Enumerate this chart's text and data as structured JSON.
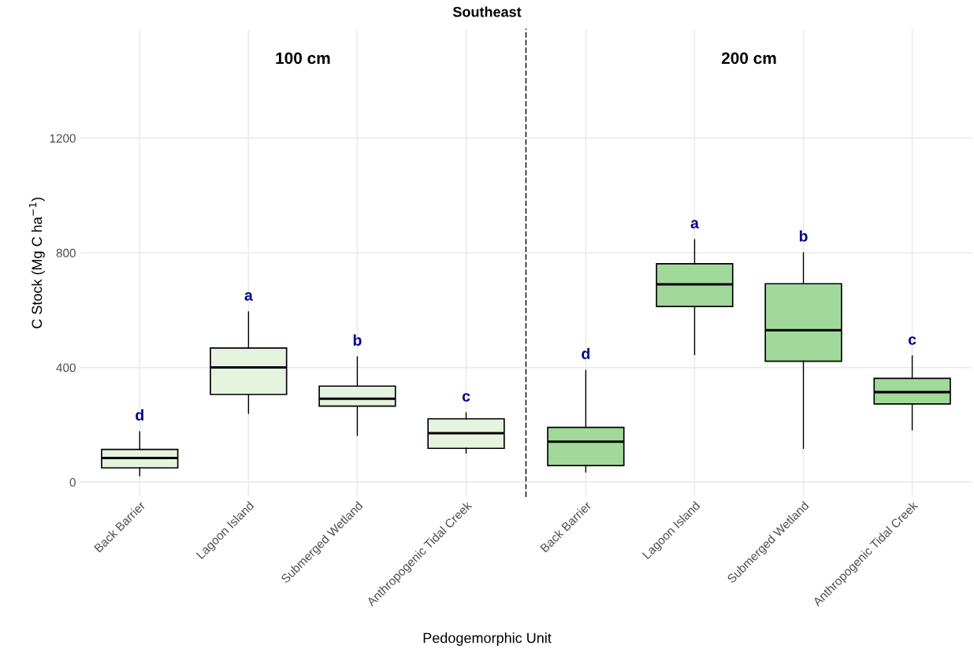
{
  "chart_data": [
    {
      "type": "box",
      "title": "Southeast",
      "subtitle": "100 cm",
      "xlabel": "Pedogemorphic Unit",
      "ylabel": "C Stock (Mg C ha$^{−1}$)",
      "categories": [
        "Back Barrier",
        "Lagoon Island",
        "Submerged Wetland",
        "Anthropogenic Tidal Creek"
      ],
      "color": "#e5f3df",
      "boxes": [
        {
          "low": 22,
          "q1": 50,
          "median": 84,
          "q3": 114,
          "high": 176
        },
        {
          "low": 240,
          "q1": 306,
          "median": 400,
          "q3": 468,
          "high": 594
        },
        {
          "low": 163,
          "q1": 265,
          "median": 291,
          "q3": 335,
          "high": 437
        },
        {
          "low": 101,
          "q1": 118,
          "median": 171,
          "q3": 221,
          "high": 242
        }
      ],
      "annotations": [
        "d",
        "a",
        "b",
        "c"
      ],
      "ylim": [
        -50,
        1580
      ],
      "yticks": [
        0,
        400,
        800,
        1200
      ],
      "grid": true
    },
    {
      "type": "box",
      "subtitle": "200 cm",
      "categories": [
        "Back Barrier",
        "Lagoon Island",
        "Submerged Wetland",
        "Anthropogenic Tidal Creek"
      ],
      "color": "#a1d99b",
      "boxes": [
        {
          "low": 35,
          "q1": 58,
          "median": 141,
          "q3": 191,
          "high": 390
        },
        {
          "low": 445,
          "q1": 613,
          "median": 690,
          "q3": 762,
          "high": 846
        },
        {
          "low": 118,
          "q1": 422,
          "median": 530,
          "q3": 692,
          "high": 800
        },
        {
          "low": 182,
          "q1": 273,
          "median": 314,
          "q3": 362,
          "high": 440
        }
      ],
      "annotations": [
        "d",
        "a",
        "b",
        "c"
      ],
      "ylim": [
        -50,
        1580
      ],
      "yticks": [
        0,
        400,
        800,
        1200
      ],
      "tick_labels": "x",
      "grid": true
    }
  ]
}
